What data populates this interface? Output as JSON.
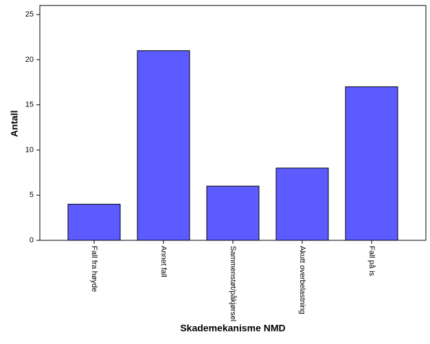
{
  "chart_data": {
    "type": "bar",
    "x_label": "Skademekanisme NMD",
    "y_label": "Antall",
    "categories": [
      "Fall fra høyde",
      "Annet fall",
      "Sammenstøt/påkjørsel",
      "Akutt overbelastning",
      "Fall på is"
    ],
    "values": [
      4,
      21,
      6,
      8,
      17
    ],
    "color": "#5b5bff",
    "ylim": [
      0,
      26
    ],
    "yticks": [
      0,
      5,
      10,
      15,
      20,
      25
    ],
    "grid": false
  }
}
